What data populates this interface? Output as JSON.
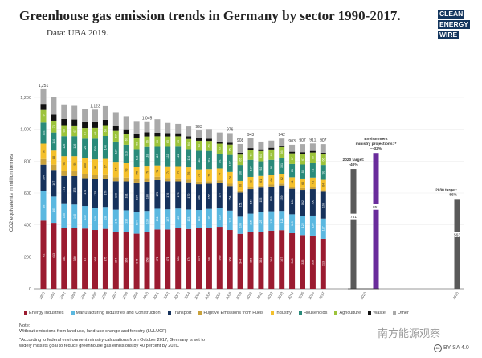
{
  "header": {
    "title": "Greenhouse gas emission trends in Germany by sector 1990-2017.",
    "subtitle": "Data: UBA 2019.",
    "logo": [
      "CLEAN",
      "ENERGY",
      "WIRE"
    ]
  },
  "chart_data": {
    "type": "bar",
    "stacked": true,
    "title": "Greenhouse gas emission trends in Germany by sector 1990-2017.",
    "ylabel": "CO2 equivalents in million tonnes",
    "ylim": [
      0,
      1300
    ],
    "yticks": [
      0,
      200,
      400,
      600,
      800,
      1000,
      1200
    ],
    "ytick_labels": [
      "0",
      "200",
      "400",
      "600",
      "800",
      "1,000",
      "1,200"
    ],
    "grid": true,
    "legend_position": "bottom",
    "categories": [
      "1990",
      "1991",
      "1992",
      "1993",
      "1994",
      "1995",
      "1996",
      "1997",
      "1998",
      "1999",
      "2000",
      "2001",
      "2002",
      "2003",
      "2004",
      "2005",
      "2006",
      "2007",
      "2008",
      "2009",
      "2010",
      "2011",
      "2012",
      "2013",
      "2014",
      "2015",
      "2016",
      "2017"
    ],
    "series": [
      {
        "name": "Energy Industries",
        "color": "#9b1b30",
        "values": [
          427,
          413,
          381,
          380,
          377,
          368,
          375,
          354,
          356,
          345,
          358,
          371,
          371,
          380,
          374,
          379,
          381,
          388,
          368,
          344,
          356,
          354,
          364,
          367,
          348,
          336,
          333,
          313
        ]
      },
      {
        "name": "Manufacturing Industries and Construction",
        "color": "#5bb8e0",
        "values": [
          187,
          165,
          155,
          148,
          142,
          140,
          138,
          142,
          136,
          134,
          130,
          131,
          127,
          123,
          123,
          115,
          120,
          120,
          122,
          108,
          115,
          125,
          122,
          121,
          119,
          122,
          126,
          127
        ]
      },
      {
        "name": "Transport",
        "color": "#16325c",
        "values": [
          164,
          167,
          171,
          178,
          174,
          178,
          178,
          178,
          181,
          187,
          183,
          179,
          176,
          170,
          170,
          161,
          157,
          157,
          154,
          151,
          154,
          155,
          155,
          159,
          160,
          162,
          166,
          168
        ]
      },
      {
        "name": "Fugitive Emissions from Fuels",
        "color": "#c9a23c",
        "values": [
          35,
          33,
          31,
          30,
          28,
          27,
          26,
          25,
          24,
          23,
          22,
          21,
          20,
          19,
          18,
          17,
          16,
          15,
          14,
          13,
          13,
          12,
          12,
          12,
          11,
          11,
          11,
          11
        ]
      },
      {
        "name": "Industry",
        "color": "#f4c02c",
        "values": [
          97,
          88,
          93,
          95,
          100,
          98,
          97,
          97,
          93,
          75,
          78,
          71,
          74,
          77,
          76,
          76,
          76,
          74,
          74,
          60,
          63,
          61,
          60,
          62,
          61,
          60,
          61,
          64
        ]
      },
      {
        "name": "Households",
        "color": "#2a8a7a",
        "values": [
          132,
          114,
          126,
          126,
          120,
          130,
          144,
          127,
          113,
          111,
          118,
          117,
          122,
          122,
          114,
          117,
          114,
          91,
          107,
          100,
          107,
          92,
          95,
          101,
          83,
          88,
          91,
          93
        ]
      },
      {
        "name": "Agriculture",
        "color": "#9cc33b",
        "values": [
          79,
          74,
          69,
          67,
          67,
          68,
          68,
          67,
          67,
          68,
          66,
          66,
          65,
          65,
          64,
          63,
          63,
          65,
          65,
          65,
          63,
          64,
          65,
          66,
          67,
          67,
          66,
          66
        ]
      },
      {
        "name": "Waste",
        "color": "#111111",
        "values": [
          38,
          38,
          38,
          37,
          36,
          35,
          33,
          31,
          30,
          28,
          26,
          23,
          21,
          19,
          17,
          15,
          14,
          13,
          12,
          12,
          11,
          11,
          11,
          10,
          10,
          10,
          10,
          10
        ]
      },
      {
        "name": "Other",
        "color": "#a9a9a9",
        "values": [
          92,
          111,
          92,
          86,
          82,
          79,
          86,
          86,
          82,
          76,
          64,
          84,
          64,
          59,
          62,
          50,
          61,
          57,
          60,
          55,
          61,
          49,
          45,
          44,
          44,
          51,
          47,
          55
        ]
      }
    ],
    "total_labels": {
      "1990": "1,251",
      "1995": "1,123",
      "2000": "1,045",
      "2005": "993",
      "2008": "976",
      "2009": "908",
      "2010": "943",
      "2013": "942",
      "2014": "903",
      "2015": "907",
      "2016": "911",
      "2017": "907"
    },
    "targets": [
      {
        "category": "2020",
        "value": 751,
        "label": "751",
        "annotation": [
          "2020 target:",
          "-40%"
        ],
        "color": "#5a5a5a"
      },
      {
        "category": "2020",
        "value": 851,
        "label": "851",
        "annotation": [
          "Environment",
          "ministry projections: *",
          "~-32%"
        ],
        "color": "#6a2c9c"
      },
      {
        "category": "2030",
        "value": 563,
        "label": "563",
        "annotation": [
          "2030 target:",
          "- 55%"
        ],
        "color": "#5a5a5a"
      }
    ]
  },
  "notes": {
    "heading": "Note:",
    "line1": "Without emissions from land use, land-use change and forestry (LULUCF)",
    "footnote1": "*According to federal environment ministry calculations from October 2017, Germany is set to",
    "footnote2": "widely miss its goal to reduce greenhouse gas emissions by 40 percent by 2020."
  },
  "watermark": "南方能源观察",
  "license": "BY SA 4.0"
}
